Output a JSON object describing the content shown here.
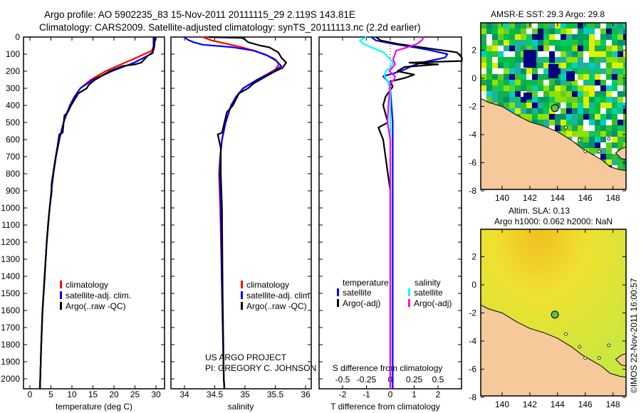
{
  "title_line1": "Argo profile: AO 5902235_83 15-Nov-2011 20111115_29 2.119S 143.81E",
  "title_line2": "Climatology: CARS2009. Satellite-adjusted climatology: synTS_20111113.nc (2.2d earlier)",
  "footer_stamp": "©IMOS 22-Nov-2011 16:00:57",
  "colors": {
    "climatology": "#ff0000",
    "satellite": "#0000ff",
    "argo": "#000000",
    "sal_satellite": "#00ffff",
    "sal_argo": "#ff00ff",
    "land": "#f5c99a"
  },
  "chart_data": [
    {
      "type": "line",
      "xlabel": "temperature (deg C)",
      "ylabel": "",
      "xlim": [
        -1.5,
        32
      ],
      "ylim": [
        2058,
        0
      ],
      "xticks": [
        "0",
        "5",
        "10",
        "15",
        "20",
        "25",
        "30"
      ],
      "xtick_values": [
        0,
        5,
        10,
        15,
        20,
        25,
        30
      ],
      "yticks": [
        "0",
        "100",
        "200",
        "300",
        "400",
        "500",
        "600",
        "700",
        "800",
        "900",
        "1000",
        "1100",
        "1200",
        "1300",
        "1400",
        "1500",
        "1600",
        "1700",
        "1800",
        "1900",
        "2000"
      ],
      "legend": [
        "climatology",
        "satellite-adj. clim.",
        "Argo(..raw -QC)"
      ],
      "legend_placement": "lower-center",
      "series": [
        {
          "name": "climatology",
          "color_key": "climatology",
          "points": [
            [
              0,
              29.6
            ],
            [
              50,
              29.5
            ],
            [
              80,
              29.0
            ],
            [
              100,
              27.2
            ],
            [
              130,
              24.5
            ],
            [
              150,
              22.6
            ],
            [
              200,
              18.0
            ],
            [
              250,
              14.5
            ],
            [
              300,
              12.0
            ],
            [
              350,
              10.6
            ],
            [
              400,
              9.5
            ],
            [
              500,
              8.0
            ],
            [
              600,
              7.0
            ],
            [
              700,
              6.2
            ],
            [
              800,
              5.6
            ],
            [
              900,
              5.1
            ],
            [
              1000,
              4.7
            ],
            [
              1200,
              4.0
            ],
            [
              1400,
              3.5
            ],
            [
              1600,
              3.0
            ],
            [
              1800,
              2.7
            ],
            [
              2000,
              2.45
            ],
            [
              2058,
              2.35
            ]
          ]
        },
        {
          "name": "satellite-adj. clim.",
          "color_key": "satellite",
          "points": [
            [
              0,
              29.4
            ],
            [
              60,
              29.4
            ],
            [
              95,
              29.2
            ],
            [
              110,
              28.0
            ],
            [
              150,
              24.8
            ],
            [
              200,
              19.5
            ],
            [
              250,
              15.0
            ],
            [
              300,
              12.0
            ],
            [
              350,
              10.6
            ],
            [
              400,
              9.5
            ],
            [
              500,
              8.0
            ],
            [
              600,
              7.0
            ],
            [
              700,
              6.2
            ],
            [
              800,
              5.6
            ],
            [
              900,
              5.1
            ],
            [
              1000,
              4.7
            ],
            [
              1200,
              4.0
            ],
            [
              1400,
              3.5
            ],
            [
              1600,
              3.0
            ],
            [
              1800,
              2.7
            ],
            [
              2000,
              2.45
            ],
            [
              2058,
              2.35
            ]
          ]
        },
        {
          "name": "Argo(..raw -QC)",
          "color_key": "argo",
          "points": [
            [
              0,
              29.8
            ],
            [
              60,
              29.6
            ],
            [
              90,
              29.2
            ],
            [
              110,
              28.0
            ],
            [
              150,
              26.5
            ],
            [
              160,
              25.0
            ],
            [
              170,
              22.0
            ],
            [
              200,
              19.0
            ],
            [
              250,
              15.5
            ],
            [
              280,
              14.0
            ],
            [
              300,
              13.5
            ],
            [
              330,
              11.5
            ],
            [
              400,
              9.8
            ],
            [
              440,
              9.0
            ],
            [
              460,
              8.2
            ],
            [
              560,
              7.8
            ],
            [
              570,
              7.0
            ],
            [
              650,
              6.5
            ],
            [
              720,
              6.0
            ],
            [
              800,
              5.5
            ],
            [
              870,
              5.1
            ],
            [
              900,
              5.2
            ],
            [
              1000,
              4.7
            ],
            [
              1100,
              4.3
            ],
            [
              1200,
              4.0
            ],
            [
              1400,
              3.5
            ],
            [
              1600,
              3.0
            ],
            [
              1800,
              2.7
            ],
            [
              2000,
              2.45
            ],
            [
              2058,
              2.4
            ]
          ]
        }
      ]
    },
    {
      "type": "line",
      "xlabel": "salinity",
      "xlim": [
        33.78,
        36.1
      ],
      "ylim": [
        2058,
        0
      ],
      "xticks": [
        "34",
        "34.5",
        "35",
        "35.5",
        "36"
      ],
      "xtick_values": [
        34,
        34.5,
        35,
        35.5,
        36
      ],
      "legend": [
        "climatology",
        "satellite-adj. clim.",
        "Argo(..raw -QC)"
      ],
      "legend_placement": "lower-right",
      "annotation_lines": [
        "US ARGO PROJECT",
        "PI: GREGORY C. JOHNSON"
      ],
      "series": [
        {
          "name": "climatology",
          "color_key": "climatology",
          "points": [
            [
              0,
              34.3
            ],
            [
              20,
              34.45
            ],
            [
              40,
              34.7
            ],
            [
              60,
              34.95
            ],
            [
              80,
              35.15
            ],
            [
              100,
              35.32
            ],
            [
              130,
              35.5
            ],
            [
              160,
              35.56
            ],
            [
              190,
              35.5
            ],
            [
              220,
              35.35
            ],
            [
              250,
              35.2
            ],
            [
              300,
              34.97
            ],
            [
              350,
              34.85
            ],
            [
              400,
              34.77
            ],
            [
              500,
              34.68
            ],
            [
              600,
              34.62
            ],
            [
              700,
              34.59
            ],
            [
              800,
              34.57
            ],
            [
              1000,
              34.59
            ],
            [
              1500,
              34.62
            ],
            [
              2000,
              34.65
            ],
            [
              2058,
              34.66
            ]
          ]
        },
        {
          "name": "satellite-adj. clim.",
          "color_key": "satellite",
          "points": [
            [
              0,
              34.0
            ],
            [
              15,
              34.05
            ],
            [
              30,
              34.15
            ],
            [
              45,
              34.3
            ],
            [
              60,
              34.8
            ],
            [
              80,
              35.15
            ],
            [
              110,
              35.38
            ],
            [
              140,
              35.52
            ],
            [
              170,
              35.6
            ],
            [
              200,
              35.48
            ],
            [
              250,
              35.2
            ],
            [
              300,
              34.97
            ],
            [
              350,
              34.85
            ],
            [
              400,
              34.77
            ],
            [
              500,
              34.68
            ],
            [
              600,
              34.62
            ],
            [
              700,
              34.59
            ],
            [
              800,
              34.58
            ],
            [
              1000,
              34.6
            ],
            [
              1500,
              34.62
            ],
            [
              2000,
              34.65
            ],
            [
              2058,
              34.66
            ]
          ]
        },
        {
          "name": "Argo(..raw -QC)",
          "color_key": "argo",
          "points": [
            [
              0,
              34.4
            ],
            [
              5,
              34.95
            ],
            [
              15,
              35.0
            ],
            [
              30,
              35.05
            ],
            [
              50,
              35.25
            ],
            [
              60,
              35.4
            ],
            [
              90,
              35.55
            ],
            [
              120,
              35.6
            ],
            [
              150,
              35.68
            ],
            [
              180,
              35.62
            ],
            [
              200,
              35.5
            ],
            [
              240,
              35.3
            ],
            [
              270,
              35.15
            ],
            [
              300,
              35.05
            ],
            [
              330,
              34.9
            ],
            [
              400,
              34.8
            ],
            [
              440,
              34.7
            ],
            [
              500,
              34.66
            ],
            [
              560,
              34.62
            ],
            [
              570,
              34.55
            ],
            [
              650,
              34.6
            ],
            [
              800,
              34.6
            ],
            [
              1000,
              34.62
            ],
            [
              1500,
              34.63
            ],
            [
              2000,
              34.65
            ],
            [
              2058,
              34.66
            ]
          ]
        }
      ]
    },
    {
      "type": "line",
      "xlabel": "T difference from climatology",
      "xlabel2": "S difference from climatology",
      "xlim_T": [
        -3,
        3
      ],
      "xlim_S": [
        -0.75,
        0.75
      ],
      "ylim": [
        2058,
        0
      ],
      "xticks": [
        "-2",
        "-1",
        "0",
        "1",
        "2"
      ],
      "xtick_values": [
        -2,
        -1,
        0,
        1,
        2
      ],
      "xticks_S": [
        "-0.5",
        "-0.25",
        "0",
        "0.25",
        "0.5"
      ],
      "xtick_values_S": [
        -0.5,
        -0.25,
        0,
        0.25,
        0.5
      ],
      "legend_T_title": "temperature",
      "legend_S_title": "salinity",
      "legend_T": [
        "satellite",
        "Argo(-adj)"
      ],
      "legend_S": [
        "satellite",
        "Argo(-adj)"
      ],
      "legend_placement": "lower-center",
      "series": [
        {
          "name": "T satellite",
          "units": "T",
          "color_key": "satellite",
          "points": [
            [
              0,
              -0.8
            ],
            [
              20,
              -0.6
            ],
            [
              40,
              0.1
            ],
            [
              60,
              1.0
            ],
            [
              75,
              1.6
            ],
            [
              100,
              2.4
            ],
            [
              120,
              2.3
            ],
            [
              150,
              1.3
            ],
            [
              170,
              0.9
            ],
            [
              190,
              0.6
            ],
            [
              210,
              0.2
            ],
            [
              230,
              -0.3
            ],
            [
              260,
              -0.1
            ],
            [
              300,
              0.0
            ],
            [
              500,
              0.1
            ],
            [
              1000,
              0.1
            ],
            [
              2058,
              0.1
            ]
          ]
        },
        {
          "name": "T Argo(-adj)",
          "units": "T",
          "color_key": "argo",
          "points": [
            [
              0,
              -0.6
            ],
            [
              20,
              -0.4
            ],
            [
              40,
              0.3
            ],
            [
              70,
              1.8
            ],
            [
              90,
              2.8
            ],
            [
              120,
              3.0
            ],
            [
              140,
              3.0
            ],
            [
              150,
              0.8
            ],
            [
              160,
              2.0
            ],
            [
              175,
              0.6
            ],
            [
              200,
              0.3
            ],
            [
              220,
              1.0
            ],
            [
              240,
              0.6
            ],
            [
              260,
              0.0
            ],
            [
              290,
              0.1
            ],
            [
              350,
              -0.2
            ],
            [
              400,
              -0.3
            ],
            [
              500,
              -0.1
            ],
            [
              530,
              -0.5
            ],
            [
              600,
              -0.3
            ],
            [
              700,
              -0.2
            ],
            [
              800,
              -0.1
            ],
            [
              900,
              0.0
            ],
            [
              1000,
              0.0
            ],
            [
              2058,
              0.0
            ]
          ]
        },
        {
          "name": "S satellite",
          "units": "S",
          "color_key": "sal_satellite",
          "points": [
            [
              0,
              -0.25
            ],
            [
              20,
              -0.32
            ],
            [
              40,
              -0.28
            ],
            [
              60,
              -0.2
            ],
            [
              90,
              -0.07
            ],
            [
              130,
              0.0
            ],
            [
              150,
              0.03
            ],
            [
              180,
              0.0
            ],
            [
              200,
              -0.05
            ],
            [
              230,
              -0.06
            ],
            [
              270,
              -0.02
            ],
            [
              300,
              0.0
            ],
            [
              2058,
              0.0
            ]
          ]
        },
        {
          "name": "S Argo(-adj)",
          "units": "S",
          "color_key": "sal_argo",
          "points": [
            [
              0,
              0.35
            ],
            [
              20,
              0.33
            ],
            [
              40,
              0.28
            ],
            [
              60,
              0.18
            ],
            [
              80,
              0.06
            ],
            [
              100,
              0.05
            ],
            [
              130,
              0.03
            ],
            [
              160,
              0.05
            ],
            [
              200,
              -0.01
            ],
            [
              230,
              0.05
            ],
            [
              250,
              0.04
            ],
            [
              270,
              0.0
            ],
            [
              400,
              -0.02
            ],
            [
              500,
              -0.03
            ],
            [
              600,
              0.0
            ],
            [
              2058,
              0.0
            ]
          ]
        }
      ]
    }
  ],
  "maps": [
    {
      "title": "AMSR-E SST: 29.3 Argo: 29.8",
      "lon_ticks": [
        "140",
        "142",
        "144",
        "146",
        "148"
      ],
      "lon_values": [
        140,
        142,
        144,
        146,
        148
      ],
      "lat_ticks": [
        "2",
        "0",
        "-2",
        "-4",
        "-6",
        "-8"
      ],
      "lat_values": [
        2,
        0,
        -2,
        -4,
        -6,
        -8
      ],
      "argo_position": {
        "lon": 143.81,
        "lat": -2.119
      }
    },
    {
      "title_line1": "Altim. SLA: 0.13",
      "title_line2": "Argo h1000: 0.062 h2000: NaN",
      "lon_ticks": [
        "140",
        "142",
        "144",
        "146",
        "148"
      ],
      "lon_values": [
        140,
        142,
        144,
        146,
        148
      ],
      "lat_ticks": [
        "2",
        "0",
        "-2",
        "-4",
        "-6",
        "-8"
      ],
      "lat_values": [
        2,
        0,
        -2,
        -4,
        -6,
        -8
      ],
      "argo_position": {
        "lon": 143.81,
        "lat": -2.119
      }
    }
  ]
}
